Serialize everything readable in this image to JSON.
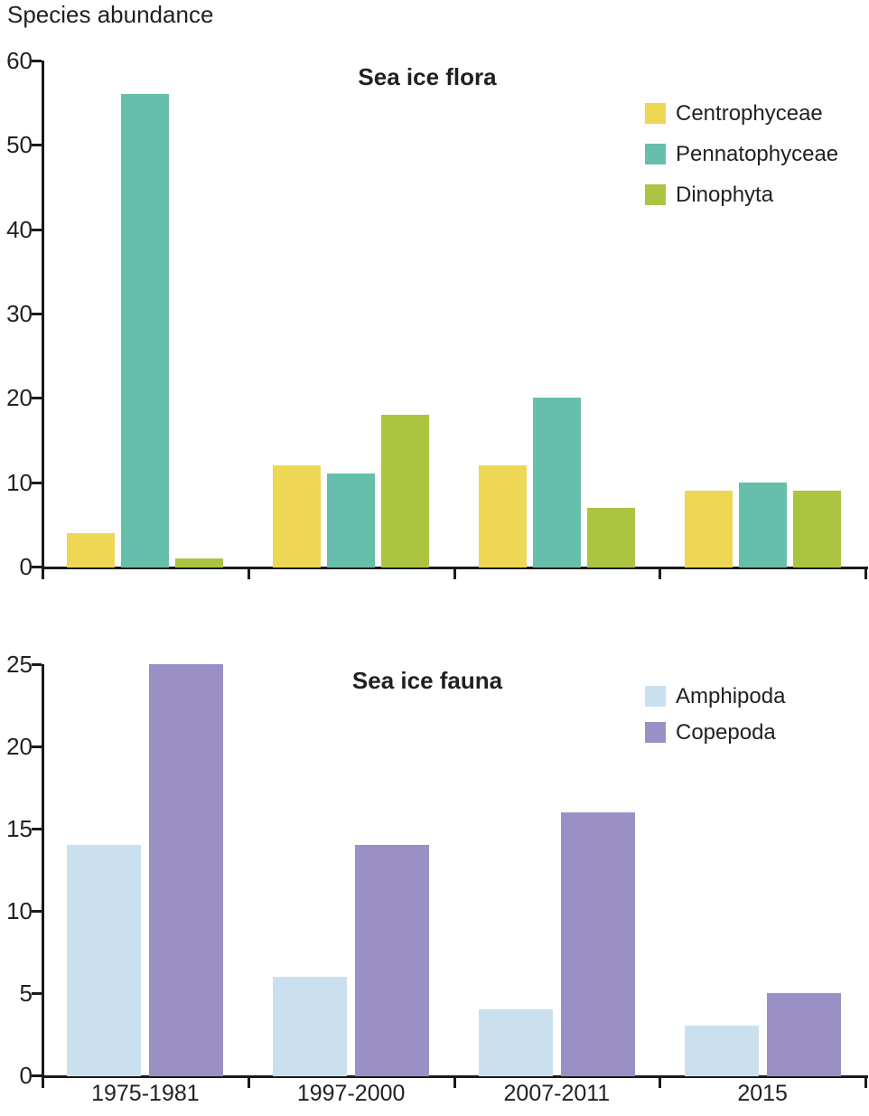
{
  "page_title": "Species abundance",
  "colors": {
    "axis": "#1a1a1a",
    "text": "#231f20",
    "centrophyceae": "#edd755",
    "pennatophyceae": "#65bfab",
    "dinophyta": "#abc442",
    "amphipoda": "#cbe0ee",
    "copepoda": "#9a90c5"
  },
  "chart_data": [
    {
      "type": "bar",
      "title": "Sea ice flora",
      "categories": [
        "1975-1981",
        "1997-2000",
        "2007-2011",
        "2015"
      ],
      "show_category_labels": false,
      "series": [
        {
          "name": "Centrophyceae",
          "color_key": "centrophyceae",
          "values": [
            4,
            12,
            12,
            9
          ]
        },
        {
          "name": "Pennatophyceae",
          "color_key": "pennatophyceae",
          "values": [
            56,
            11,
            20,
            10
          ]
        },
        {
          "name": "Dinophyta",
          "color_key": "dinophyta",
          "values": [
            1,
            18,
            7,
            9
          ]
        }
      ],
      "legend": [
        "Centrophyceae",
        "Pennatophyceae",
        "Dinophyta"
      ],
      "legend_position": "top-right",
      "xlabel": "",
      "ylabel": "",
      "ylim": [
        0,
        60
      ],
      "yticks": [
        0,
        10,
        20,
        30,
        40,
        50,
        60
      ],
      "grid": false
    },
    {
      "type": "bar",
      "title": "Sea ice fauna",
      "categories": [
        "1975-1981",
        "1997-2000",
        "2007-2011",
        "2015"
      ],
      "show_category_labels": true,
      "series": [
        {
          "name": "Amphipoda",
          "color_key": "amphipoda",
          "values": [
            14,
            6,
            4,
            3
          ]
        },
        {
          "name": "Copepoda",
          "color_key": "copepoda",
          "values": [
            25,
            14,
            16,
            5
          ]
        }
      ],
      "legend": [
        "Amphipoda",
        "Copepoda"
      ],
      "legend_position": "top-right",
      "xlabel": "",
      "ylabel": "",
      "ylim": [
        0,
        25
      ],
      "yticks": [
        0,
        5,
        10,
        15,
        20,
        25
      ],
      "grid": false
    }
  ]
}
